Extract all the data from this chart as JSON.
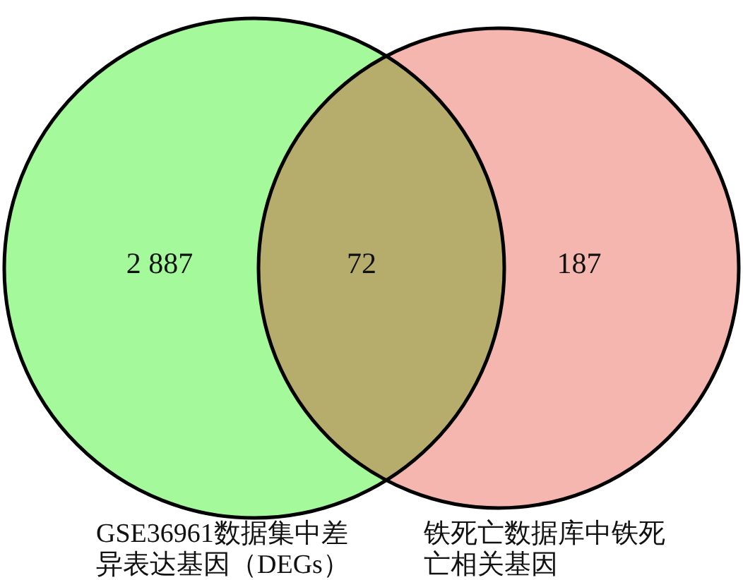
{
  "chart_data": {
    "type": "other",
    "categories": [
      null,
      null,
      null
    ],
    "values": [
      2887,
      72,
      187
    ],
    "data_labels": true,
    "colors": [
      "#a4f99a",
      "#b6ad6c",
      "#f4b6ae"
    ],
    "annotations": [
      "GSE36961数据集中差异表达基因（DEGs）",
      "铁死亡数据库中铁死亡相关基因"
    ]
  }
}
